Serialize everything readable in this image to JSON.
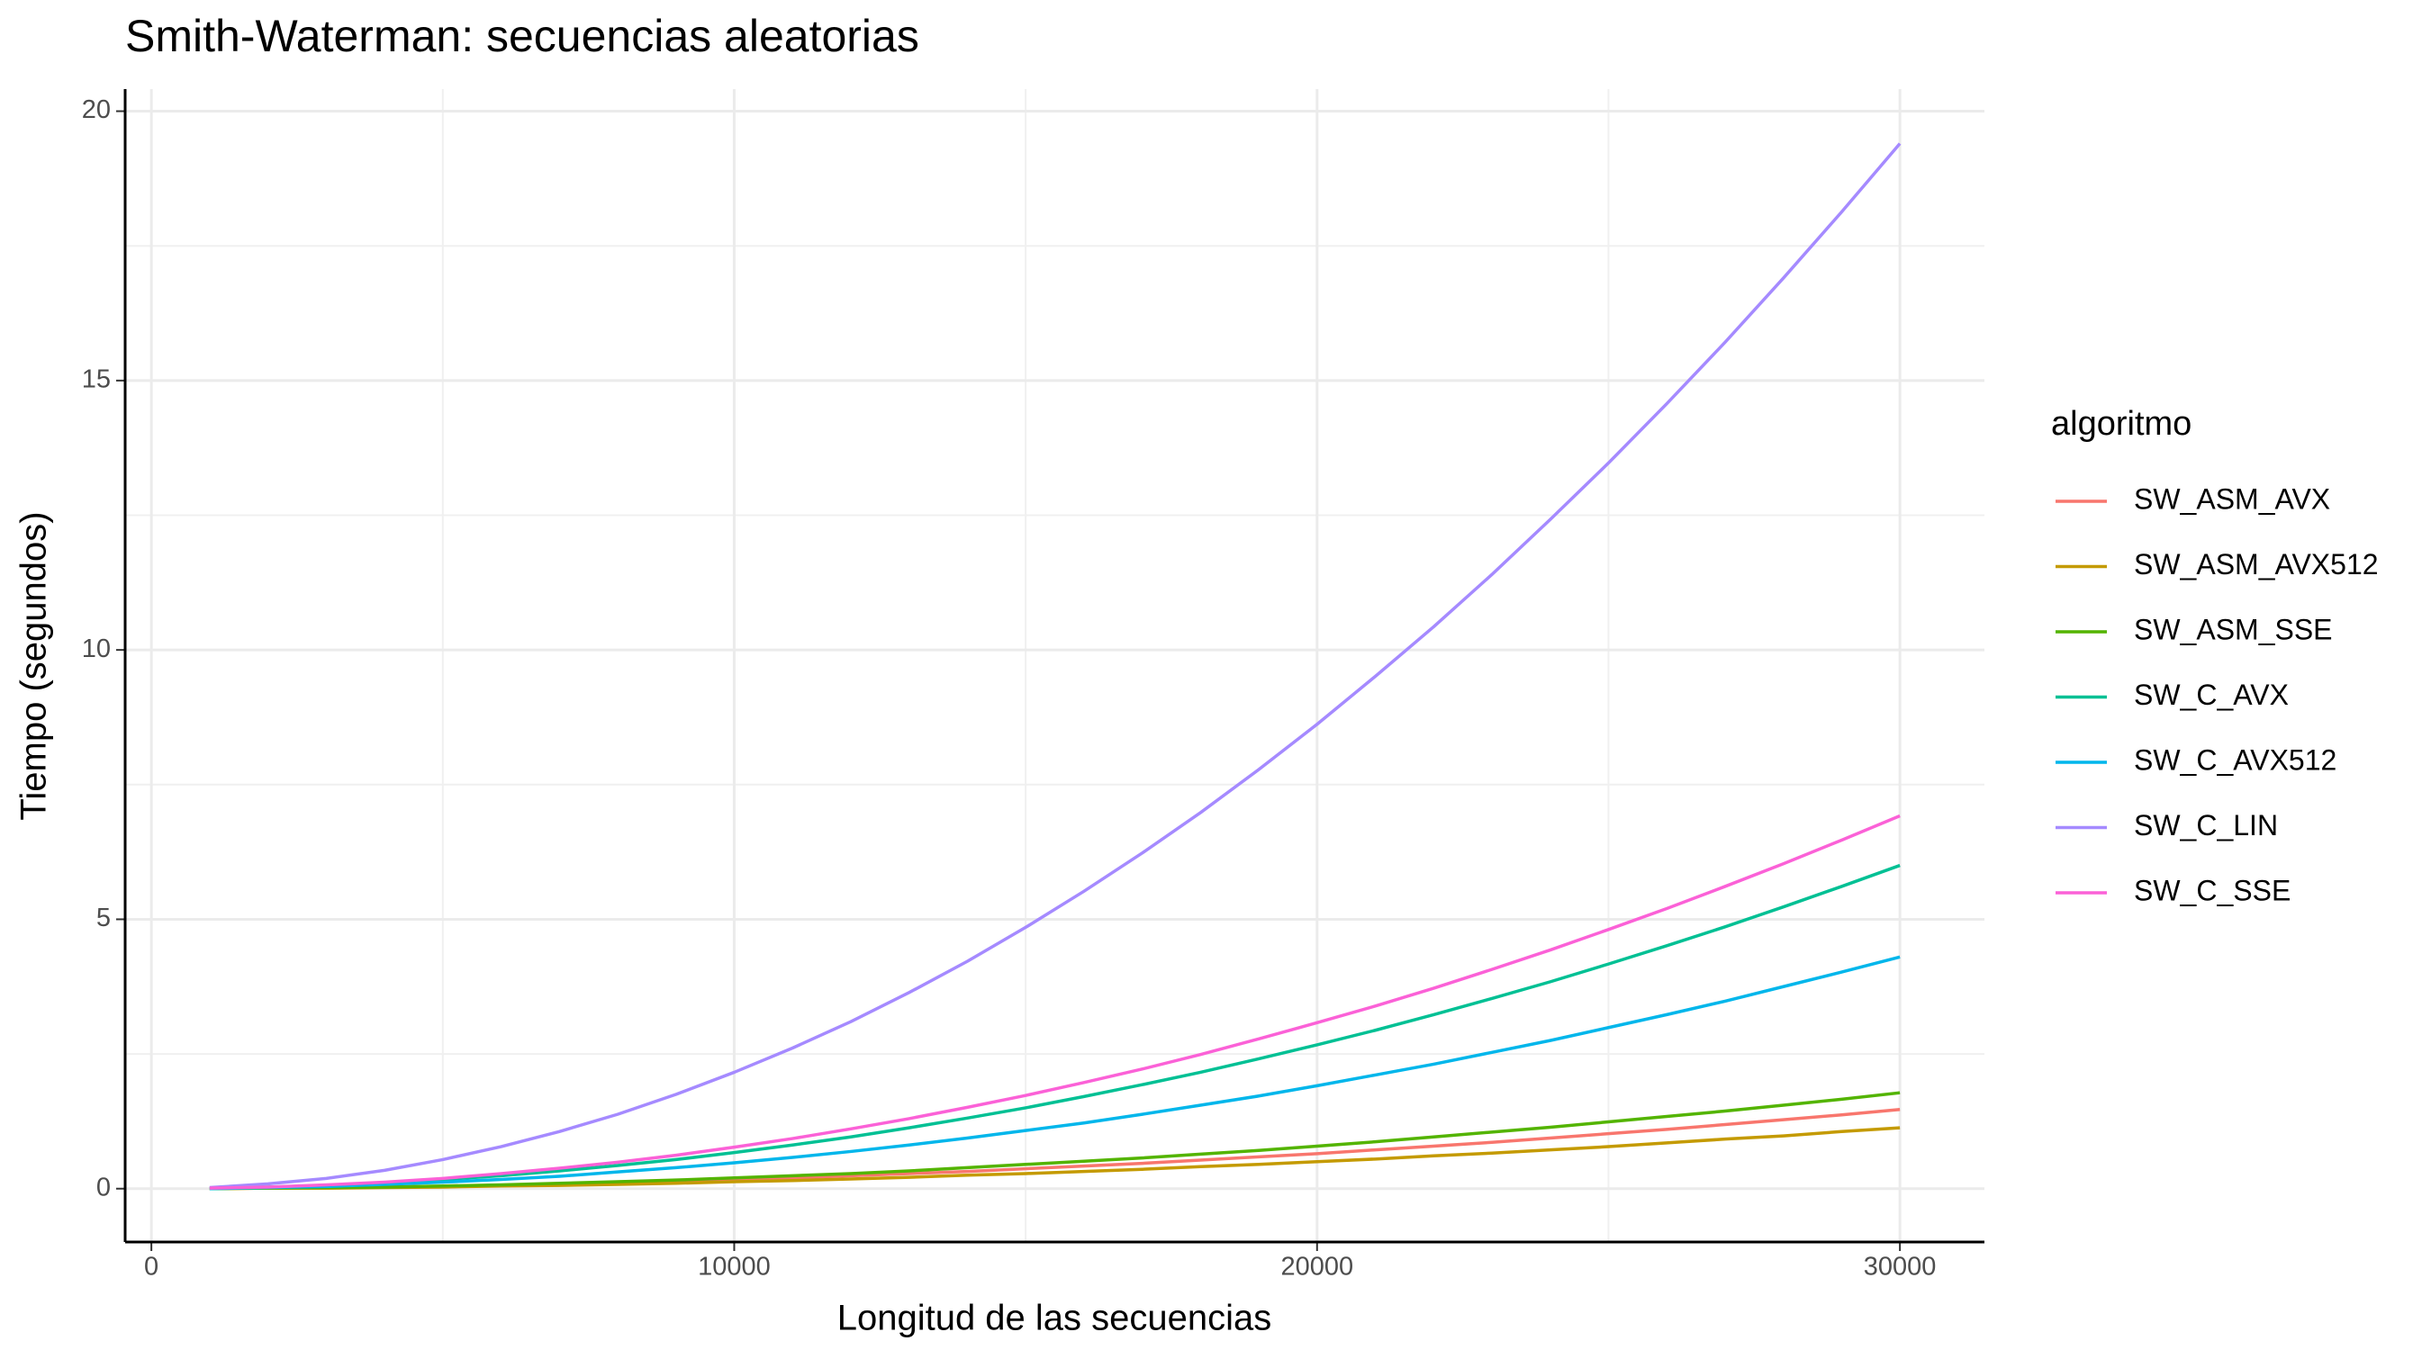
{
  "chart_data": {
    "type": "line",
    "title": "Smith-Waterman: secuencias aleatorias",
    "x_label": "Longitud de las secuencias",
    "y_label": "Tiempo (segundos)",
    "legend_title": "algoritmo",
    "x": [
      1000,
      2000,
      3000,
      4000,
      5000,
      6000,
      7000,
      8000,
      9000,
      10000,
      11000,
      12000,
      13000,
      14000,
      15000,
      16000,
      17000,
      18000,
      19000,
      20000,
      21000,
      22000,
      23000,
      24000,
      25000,
      26000,
      27000,
      28000,
      29000,
      30000
    ],
    "series": [
      {
        "name": "SW_ASM_AVX",
        "color": "#F8766D",
        "values": [
          0.0,
          0.01,
          0.01,
          0.03,
          0.04,
          0.06,
          0.08,
          0.1,
          0.13,
          0.16,
          0.2,
          0.24,
          0.28,
          0.32,
          0.37,
          0.42,
          0.47,
          0.53,
          0.59,
          0.65,
          0.72,
          0.79,
          0.86,
          0.94,
          1.02,
          1.1,
          1.19,
          1.28,
          1.37,
          1.47
        ]
      },
      {
        "name": "SW_ASM_AVX512",
        "color": "#C49A00",
        "values": [
          0.0,
          0.01,
          0.01,
          0.02,
          0.03,
          0.05,
          0.06,
          0.08,
          0.1,
          0.13,
          0.15,
          0.18,
          0.21,
          0.25,
          0.28,
          0.32,
          0.36,
          0.41,
          0.45,
          0.5,
          0.55,
          0.61,
          0.66,
          0.72,
          0.78,
          0.85,
          0.92,
          0.98,
          1.06,
          1.13
        ]
      },
      {
        "name": "SW_ASM_SSE",
        "color": "#53B400",
        "values": [
          0.0,
          0.01,
          0.02,
          0.03,
          0.05,
          0.07,
          0.1,
          0.13,
          0.16,
          0.2,
          0.24,
          0.28,
          0.33,
          0.39,
          0.45,
          0.51,
          0.57,
          0.64,
          0.71,
          0.79,
          0.87,
          0.96,
          1.05,
          1.14,
          1.24,
          1.34,
          1.44,
          1.55,
          1.66,
          1.78
        ]
      },
      {
        "name": "SW_C_AVX",
        "color": "#00C094",
        "values": [
          0.01,
          0.03,
          0.06,
          0.11,
          0.17,
          0.24,
          0.33,
          0.43,
          0.54,
          0.67,
          0.81,
          0.96,
          1.13,
          1.31,
          1.5,
          1.71,
          1.93,
          2.16,
          2.41,
          2.67,
          2.94,
          3.23,
          3.53,
          3.84,
          4.17,
          4.51,
          4.86,
          5.23,
          5.61,
          6.0
        ]
      },
      {
        "name": "SW_C_AVX512",
        "color": "#00B6EB",
        "values": [
          0.0,
          0.02,
          0.04,
          0.08,
          0.12,
          0.17,
          0.23,
          0.31,
          0.39,
          0.48,
          0.58,
          0.69,
          0.81,
          0.94,
          1.08,
          1.22,
          1.38,
          1.55,
          1.72,
          1.91,
          2.11,
          2.31,
          2.53,
          2.75,
          2.99,
          3.23,
          3.48,
          3.75,
          4.02,
          4.3
        ]
      },
      {
        "name": "SW_C_LIN",
        "color": "#A58AFF",
        "values": [
          0.02,
          0.09,
          0.19,
          0.34,
          0.54,
          0.78,
          1.06,
          1.38,
          1.75,
          2.16,
          2.61,
          3.1,
          3.64,
          4.22,
          4.85,
          5.52,
          6.23,
          6.98,
          7.78,
          8.62,
          9.51,
          10.43,
          11.4,
          12.42,
          13.47,
          14.57,
          15.71,
          16.9,
          18.13,
          19.4
        ]
      },
      {
        "name": "SW_C_SSE",
        "color": "#FB61D7",
        "values": [
          0.01,
          0.03,
          0.07,
          0.12,
          0.19,
          0.28,
          0.38,
          0.49,
          0.62,
          0.77,
          0.93,
          1.11,
          1.3,
          1.51,
          1.73,
          1.97,
          2.22,
          2.49,
          2.78,
          3.08,
          3.39,
          3.72,
          4.07,
          4.43,
          4.81,
          5.2,
          5.61,
          6.03,
          6.47,
          6.92
        ]
      }
    ],
    "xlim": [
      -450,
      31450
    ],
    "xticks": [
      0,
      10000,
      20000,
      30000
    ],
    "xminor": [
      5000,
      15000,
      25000
    ],
    "ylim": [
      -0.99,
      20.41
    ],
    "yticks": [
      0,
      5,
      10,
      15,
      20
    ],
    "yminor": [
      2.5,
      7.5,
      12.5,
      17.5
    ],
    "grid": true,
    "legend_position": "right"
  }
}
